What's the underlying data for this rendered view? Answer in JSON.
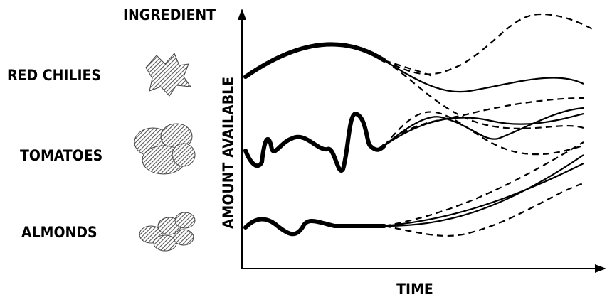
{
  "header": {
    "title": "INGREDIENT"
  },
  "ingredients": [
    {
      "label": "RED CHILIES"
    },
    {
      "label": "TOMATOES"
    },
    {
      "label": "ALMONDS"
    }
  ],
  "axes": {
    "y_label": "AMOUNT AVAILABLE",
    "x_label": "TIME"
  }
}
